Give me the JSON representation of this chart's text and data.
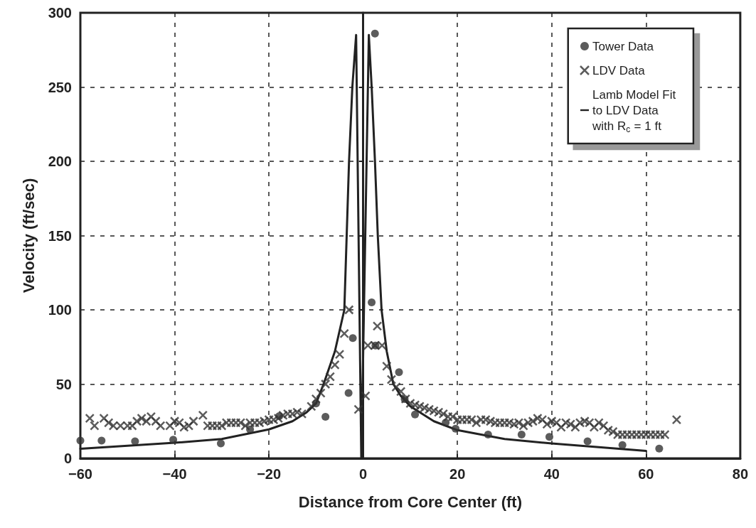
{
  "chart_data": {
    "type": "scatter",
    "xlabel": "Distance from Core Center (ft)",
    "ylabel": "Velocity (ft/sec)",
    "xlim": [
      -60,
      80
    ],
    "xticks": [
      {
        "value": -60,
        "label": "−60"
      },
      {
        "value": -40,
        "label": "−40"
      },
      {
        "value": -20,
        "label": "−20"
      },
      0,
      20,
      40,
      60,
      80
    ],
    "ylim": [
      0,
      300
    ],
    "yticks": [
      0,
      50,
      100,
      150,
      200,
      250,
      300
    ],
    "grid": true,
    "legend": "top right",
    "series": [
      {
        "name": "Tower Data",
        "marker": "circle",
        "color": "#333333",
        "x": [
          -60,
          -55.5,
          -48.4,
          -40.3,
          -30.2,
          -24,
          -17.8,
          -10,
          -8,
          -3.1,
          -2.2,
          1.8,
          2.5,
          2.6,
          7.6,
          8.8,
          11,
          17.5,
          19.6,
          26.5,
          33.6,
          39.5,
          47.6,
          55,
          62.8
        ],
        "values": [
          12,
          12,
          11.5,
          12.5,
          10,
          19.5,
          28.5,
          37,
          28,
          44,
          81,
          105,
          286,
          76,
          58,
          40,
          29.5,
          24,
          20,
          16,
          16,
          14.5,
          11.5,
          9,
          6.6
        ]
      },
      {
        "name": "LDV Data",
        "marker": "cross",
        "color": "#333333",
        "x": [
          -58,
          -57,
          -55,
          -54,
          -53,
          -51.5,
          -50,
          -49,
          -48,
          -47,
          -46,
          -45,
          -44,
          -43,
          -41,
          -40,
          -39,
          -38,
          -37,
          -36,
          -34,
          -33,
          -32,
          -31,
          -30,
          -29,
          -28,
          -27,
          -26,
          -25,
          -24,
          -23,
          -22,
          -21,
          -20,
          -19,
          -18,
          -17,
          -16,
          -15,
          -14,
          -13,
          -11,
          -10,
          -9,
          -8,
          -7,
          -6,
          -5,
          -4,
          -3,
          -1,
          0.5,
          1,
          2.5,
          3,
          4,
          5,
          6,
          7,
          8,
          9,
          10,
          11,
          12,
          13,
          14,
          15,
          16,
          17,
          18,
          19,
          20,
          21,
          22,
          23,
          24,
          25,
          26,
          27,
          28,
          29,
          30,
          31,
          32,
          33,
          34,
          35,
          36,
          37,
          38,
          39,
          40,
          41,
          42,
          43,
          44,
          45,
          46,
          47,
          48,
          49,
          50,
          51,
          52,
          53,
          54,
          55,
          56,
          57,
          58,
          59,
          60,
          61,
          62,
          63,
          64,
          66.5
        ],
        "values": [
          27,
          22,
          27,
          24,
          22,
          22,
          22,
          22,
          25,
          27,
          25,
          28,
          25,
          22,
          22,
          25,
          24,
          21,
          22,
          25,
          29,
          22,
          22,
          22,
          22,
          24,
          24,
          24,
          24,
          22,
          24,
          24,
          24,
          25,
          26,
          26,
          27,
          29,
          30,
          30,
          31,
          30,
          35,
          40,
          44,
          50,
          55,
          63,
          70,
          84,
          100,
          33,
          42,
          76,
          76,
          89,
          76,
          62,
          53,
          48,
          45,
          40,
          37,
          36,
          35,
          34,
          33,
          32,
          31,
          30,
          28,
          28,
          26,
          26,
          26,
          26,
          24,
          26,
          26,
          25,
          24,
          24,
          24,
          24,
          23,
          24,
          22,
          24,
          25,
          27,
          26,
          23,
          25,
          24,
          21,
          24,
          23,
          21,
          24,
          25,
          24,
          21,
          24,
          22,
          19,
          18,
          16,
          16,
          16,
          16,
          16,
          16,
          16,
          16,
          16,
          16,
          16,
          26
        ]
      },
      {
        "name": "Lamb Model Fit to LDV Data with R$_{c}$ = 1 ft",
        "type": "line",
        "marker": "none",
        "line_style": "solid",
        "color": "#222222",
        "x": [
          -60,
          -50,
          -40,
          -30,
          -20,
          -15,
          -12,
          -10,
          -8.4,
          -6,
          -4,
          -3.5,
          -3,
          -2.3,
          -1.5,
          -0.4,
          1.2,
          1.8,
          2.5,
          3.1,
          3.9,
          5,
          6.4,
          8,
          10,
          15,
          20,
          30,
          40,
          50,
          60
        ],
        "values": [
          6.5,
          8.5,
          10.5,
          13,
          19.5,
          25,
          31,
          37,
          50,
          72,
          100,
          150,
          200,
          250,
          285,
          0,
          285,
          250,
          200,
          150,
          100,
          72,
          50,
          42,
          35,
          25,
          19,
          13,
          10,
          7.5,
          5
        ]
      }
    ]
  }
}
